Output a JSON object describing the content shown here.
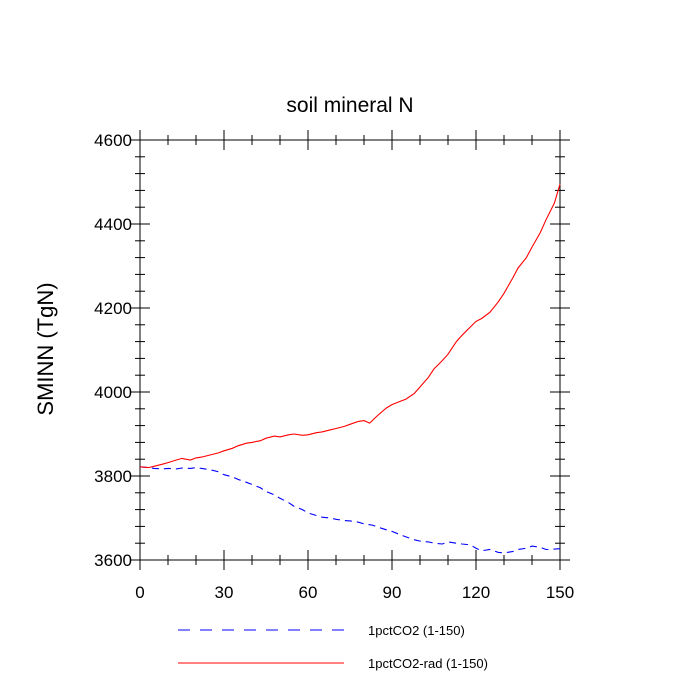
{
  "chart_data": {
    "type": "line",
    "title": "soil mineral N",
    "xlabel": "",
    "ylabel": "SMINN  (TgN)",
    "xlim": [
      0,
      150
    ],
    "ylim": [
      3600,
      4600
    ],
    "xticks": [
      0,
      30,
      60,
      90,
      120,
      150
    ],
    "xtick_labels": [
      "0",
      "30",
      "60",
      "90",
      "120",
      "150"
    ],
    "yticks": [
      3600,
      3800,
      4000,
      4200,
      4400,
      4600
    ],
    "ytick_labels": [
      "3600",
      "3800",
      "4000",
      "4200",
      "4400",
      "4600"
    ],
    "grid": false,
    "legend_position": "bottom",
    "series": [
      {
        "name": "1pctCO2 (1-150)",
        "color": "#0000ff",
        "dash": "dashed",
        "x": [
          0,
          3,
          5,
          8,
          10,
          13,
          15,
          18,
          20,
          22,
          25,
          28,
          30,
          33,
          35,
          38,
          40,
          43,
          45,
          48,
          50,
          53,
          55,
          58,
          60,
          63,
          65,
          68,
          70,
          73,
          75,
          78,
          80,
          83,
          85,
          88,
          90,
          93,
          95,
          98,
          100,
          103,
          105,
          108,
          110,
          113,
          115,
          118,
          120,
          122,
          125,
          128,
          130,
          133,
          135,
          138,
          140,
          143,
          145,
          148,
          150
        ],
        "y": [
          3822,
          3820,
          3818,
          3817,
          3818,
          3817,
          3819,
          3818,
          3820,
          3818,
          3815,
          3810,
          3803,
          3798,
          3792,
          3785,
          3780,
          3772,
          3763,
          3755,
          3747,
          3737,
          3728,
          3720,
          3712,
          3706,
          3702,
          3700,
          3697,
          3694,
          3693,
          3690,
          3686,
          3683,
          3678,
          3672,
          3668,
          3660,
          3655,
          3648,
          3645,
          3643,
          3640,
          3638,
          3643,
          3640,
          3638,
          3636,
          3628,
          3622,
          3625,
          3618,
          3617,
          3620,
          3625,
          3628,
          3633,
          3630,
          3625,
          3626,
          3627
        ]
      },
      {
        "name": "1pctCO2-rad (1-150)",
        "color": "#ff0000",
        "dash": "solid",
        "x": [
          0,
          3,
          5,
          8,
          10,
          13,
          15,
          18,
          20,
          22,
          25,
          28,
          30,
          33,
          35,
          38,
          40,
          43,
          45,
          48,
          50,
          53,
          55,
          58,
          60,
          63,
          65,
          68,
          70,
          73,
          75,
          78,
          80,
          82,
          85,
          88,
          90,
          93,
          95,
          98,
          100,
          103,
          105,
          108,
          110,
          113,
          115,
          118,
          120,
          122,
          125,
          128,
          130,
          133,
          135,
          138,
          140,
          143,
          145,
          148,
          150
        ],
        "y": [
          3822,
          3820,
          3823,
          3828,
          3832,
          3838,
          3842,
          3838,
          3843,
          3845,
          3850,
          3855,
          3860,
          3866,
          3872,
          3878,
          3880,
          3884,
          3890,
          3895,
          3893,
          3898,
          3900,
          3897,
          3898,
          3903,
          3905,
          3910,
          3913,
          3918,
          3923,
          3930,
          3932,
          3926,
          3945,
          3962,
          3970,
          3978,
          3983,
          3997,
          4012,
          4035,
          4055,
          4075,
          4090,
          4120,
          4135,
          4155,
          4168,
          4175,
          4190,
          4215,
          4235,
          4270,
          4295,
          4320,
          4345,
          4380,
          4410,
          4450,
          4495
        ]
      }
    ]
  }
}
